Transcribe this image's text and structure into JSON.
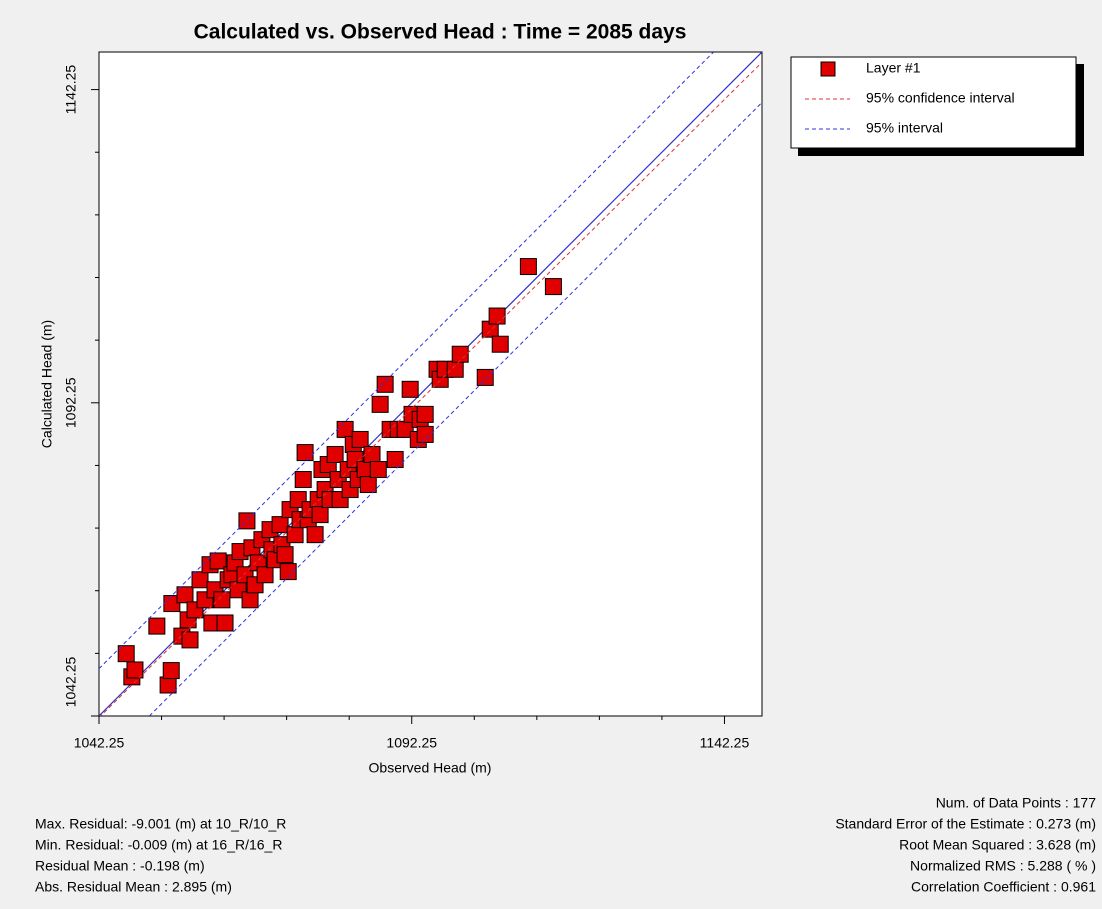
{
  "chart_data": {
    "type": "scatter",
    "title": "Calculated vs. Observed Head : Time = 2085 days",
    "x_label": "Observed Head (m)",
    "y_label": "Calculated Head (m)",
    "xlim": [
      1042.25,
      1148.25
    ],
    "ylim": [
      1042.25,
      1148.25
    ],
    "xticks": [
      1042.25,
      1092.25,
      1142.25
    ],
    "yticks": [
      1042.25,
      1092.25,
      1142.25
    ],
    "xminorticks": [
      1052.25,
      1062.25,
      1072.25,
      1082.25,
      1102.25,
      1112.25,
      1122.25,
      1132.25
    ],
    "yminorticks": [
      1052.25,
      1062.25,
      1072.25,
      1082.25,
      1102.25,
      1112.25,
      1122.25,
      1132.25
    ],
    "reference_line": {
      "color": "#3030c0",
      "x": [
        1042.25,
        1148.25
      ],
      "y": [
        1042.25,
        1148.25
      ]
    },
    "series": [
      {
        "name": "Layer #1",
        "kind": "marker",
        "color": "#e00000",
        "x": [
          1046.6,
          1047.5,
          1048.0,
          1051.5,
          1053.3,
          1053.8,
          1053.9,
          1055.5,
          1056.0,
          1056.5,
          1056.8,
          1057.6,
          1058.4,
          1059.2,
          1060.0,
          1060.3,
          1060.8,
          1061.3,
          1061.9,
          1062.4,
          1062.9,
          1063.5,
          1064.0,
          1064.5,
          1064.8,
          1065.6,
          1065.9,
          1066.4,
          1066.7,
          1067.2,
          1067.7,
          1068.3,
          1068.8,
          1069.6,
          1069.9,
          1070.4,
          1071.2,
          1071.5,
          1072.0,
          1072.5,
          1072.8,
          1073.6,
          1074.1,
          1074.4,
          1074.9,
          1075.2,
          1075.7,
          1076.0,
          1076.8,
          1077.3,
          1077.6,
          1077.9,
          1078.4,
          1078.9,
          1079.2,
          1080.0,
          1080.5,
          1080.8,
          1081.6,
          1082.1,
          1082.4,
          1082.9,
          1083.2,
          1083.7,
          1084.0,
          1084.8,
          1085.3,
          1085.9,
          1086.9,
          1087.2,
          1088.0,
          1088.8,
          1089.6,
          1090.1,
          1091.2,
          1092.0,
          1092.3,
          1093.3,
          1093.6,
          1094.4,
          1094.4,
          1096.3,
          1096.8,
          1097.6,
          1099.2,
          1100.0,
          1104.0,
          1104.8,
          1105.9,
          1106.4,
          1110.9,
          1114.9
        ],
        "values": [
          1052.2,
          1048.5,
          1049.6,
          1056.6,
          1047.2,
          1049.5,
          1060.2,
          1055.0,
          1061.6,
          1057.6,
          1054.4,
          1059.2,
          1064.0,
          1060.8,
          1066.4,
          1057.1,
          1062.4,
          1067.0,
          1060.8,
          1057.1,
          1064.0,
          1064.8,
          1066.7,
          1062.4,
          1068.5,
          1064.8,
          1073.4,
          1060.8,
          1069.1,
          1063.2,
          1066.7,
          1070.4,
          1064.8,
          1072.0,
          1068.8,
          1067.2,
          1072.8,
          1069.6,
          1068.0,
          1065.3,
          1075.2,
          1071.2,
          1076.8,
          1073.6,
          1080.0,
          1084.3,
          1073.6,
          1075.2,
          1071.2,
          1076.8,
          1074.4,
          1081.6,
          1078.4,
          1082.4,
          1076.8,
          1084.0,
          1080.0,
          1076.8,
          1088.0,
          1081.6,
          1078.4,
          1085.6,
          1083.2,
          1080.0,
          1086.4,
          1081.6,
          1079.2,
          1084.0,
          1081.6,
          1092.0,
          1095.2,
          1088.0,
          1083.2,
          1088.0,
          1088.0,
          1094.4,
          1090.4,
          1086.4,
          1089.6,
          1087.2,
          1090.4,
          1097.6,
          1096.0,
          1097.6,
          1097.6,
          1100.0,
          1096.3,
          1104.0,
          1106.1,
          1101.6,
          1114.0,
          1110.8
        ]
      },
      {
        "name": "95% confidence interval",
        "kind": "dashed",
        "color": "#e03030",
        "x": [
          1042.25,
          1148.25
        ],
        "values": [
          1042.0,
          1146.6
        ]
      },
      {
        "name": "95% interval",
        "kind": "dashed",
        "color": "#3030e0",
        "x": [
          1042.25,
          1140.5,
          null,
          1050.3,
          1148.25
        ],
        "values": [
          1049.8,
          1148.25,
          null,
          1042.25,
          1140.2
        ]
      }
    ],
    "stats_left": [
      "Max. Residual: -9.001 (m) at 10_R/10_R",
      "Min. Residual: -0.009 (m) at 16_R/16_R",
      "Residual Mean : -0.198 (m)",
      "Abs. Residual Mean : 2.895 (m)"
    ],
    "stats_right": [
      "Num. of Data Points : 177",
      "Standard Error of the Estimate : 0.273 (m)",
      "Root Mean Squared : 3.628 (m)",
      "Normalized RMS : 5.288 ( % )",
      "Correlation Coefficient : 0.961"
    ]
  }
}
